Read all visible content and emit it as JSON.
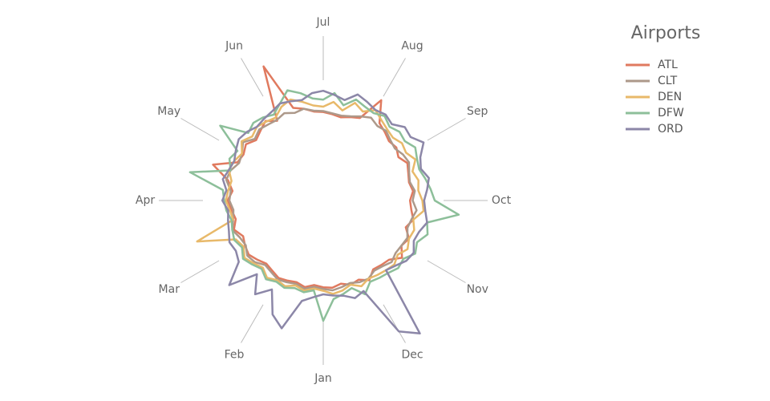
{
  "chart_data": {
    "type": "radial-line",
    "title": "Airports",
    "xlim": [
      0,
      60
    ],
    "xticks": [
      {
        "value": 0,
        "label": "Jan"
      },
      {
        "value": 5,
        "label": "Feb"
      },
      {
        "value": 10,
        "label": "Mar"
      },
      {
        "value": 15,
        "label": "Apr"
      },
      {
        "value": 20,
        "label": "May"
      },
      {
        "value": 25,
        "label": "Jun"
      },
      {
        "value": 30,
        "label": "Jul"
      },
      {
        "value": 35,
        "label": "Aug"
      },
      {
        "value": 40,
        "label": "Sep"
      },
      {
        "value": 45,
        "label": "Oct"
      },
      {
        "value": 50,
        "label": "Nov"
      },
      {
        "value": 55,
        "label": "Dec"
      }
    ],
    "rlim": [
      0,
      100
    ],
    "series": [
      {
        "name": "ATL",
        "color": "#e07a5f",
        "values": [
          12,
          10,
          14,
          11,
          13,
          15,
          12,
          10,
          14,
          18,
          16,
          13,
          20,
          15,
          18,
          22,
          17,
          24,
          45,
          20,
          18,
          22,
          16,
          20,
          25,
          18,
          80,
          24,
          20,
          15,
          14,
          12,
          10,
          13,
          16,
          45,
          22,
          18,
          14,
          16,
          12,
          18,
          15,
          13,
          16,
          12,
          14,
          18,
          12,
          20,
          16,
          24,
          14,
          12,
          10,
          18,
          12,
          14,
          10,
          13
        ]
      },
      {
        "name": "CLT",
        "color": "#ad998a",
        "values": [
          14,
          12,
          16,
          13,
          15,
          17,
          14,
          12,
          18,
          20,
          15,
          17,
          22,
          18,
          16,
          20,
          19,
          26,
          24,
          18,
          20,
          26,
          18,
          22,
          20,
          19,
          22,
          18,
          20,
          16,
          15,
          13,
          12,
          14,
          18,
          22,
          18,
          20,
          16,
          14,
          18,
          20,
          16,
          14,
          18,
          15,
          20,
          16,
          14,
          18,
          16,
          15,
          18,
          14,
          12,
          16,
          15,
          12,
          14,
          16
        ]
      },
      {
        "name": "DEN",
        "color": "#e8b96a",
        "values": [
          16,
          14,
          18,
          15,
          20,
          18,
          22,
          16,
          20,
          24,
          18,
          22,
          64,
          18,
          20,
          24,
          22,
          20,
          26,
          24,
          20,
          28,
          22,
          26,
          24,
          22,
          30,
          34,
          28,
          22,
          20,
          26,
          18,
          30,
          24,
          32,
          26,
          22,
          20,
          24,
          22,
          28,
          20,
          24,
          22,
          26,
          28,
          18,
          22,
          20,
          24,
          18,
          22,
          20,
          18,
          16,
          20,
          14,
          18,
          20
        ]
      },
      {
        "name": "DFW",
        "color": "#8dbf9a",
        "values": [
          50,
          16,
          20,
          18,
          22,
          20,
          24,
          18,
          22,
          26,
          20,
          24,
          22,
          20,
          24,
          26,
          28,
          68,
          24,
          30,
          26,
          58,
          28,
          32,
          30,
          26,
          34,
          45,
          38,
          30,
          28,
          36,
          24,
          34,
          30,
          28,
          32,
          26,
          30,
          28,
          34,
          30,
          28,
          32,
          36,
          40,
          68,
          34,
          38,
          30,
          34,
          26,
          28,
          24,
          22,
          20,
          30,
          18,
          22,
          26
        ]
      },
      {
        "name": "ORD",
        "color": "#8c87a8",
        "values": [
          20,
          24,
          30,
          66,
          55,
          30,
          45,
          26,
          57,
          32,
          28,
          30,
          26,
          24,
          22,
          28,
          24,
          30,
          26,
          24,
          28,
          32,
          30,
          26,
          28,
          30,
          34,
          32,
          30,
          36,
          38,
          34,
          30,
          40,
          36,
          32,
          34,
          30,
          38,
          36,
          45,
          34,
          30,
          36,
          32,
          28,
          30,
          34,
          28,
          26,
          32,
          30,
          24,
          20,
          100,
          85,
          26,
          30,
          24,
          22
        ]
      }
    ]
  }
}
